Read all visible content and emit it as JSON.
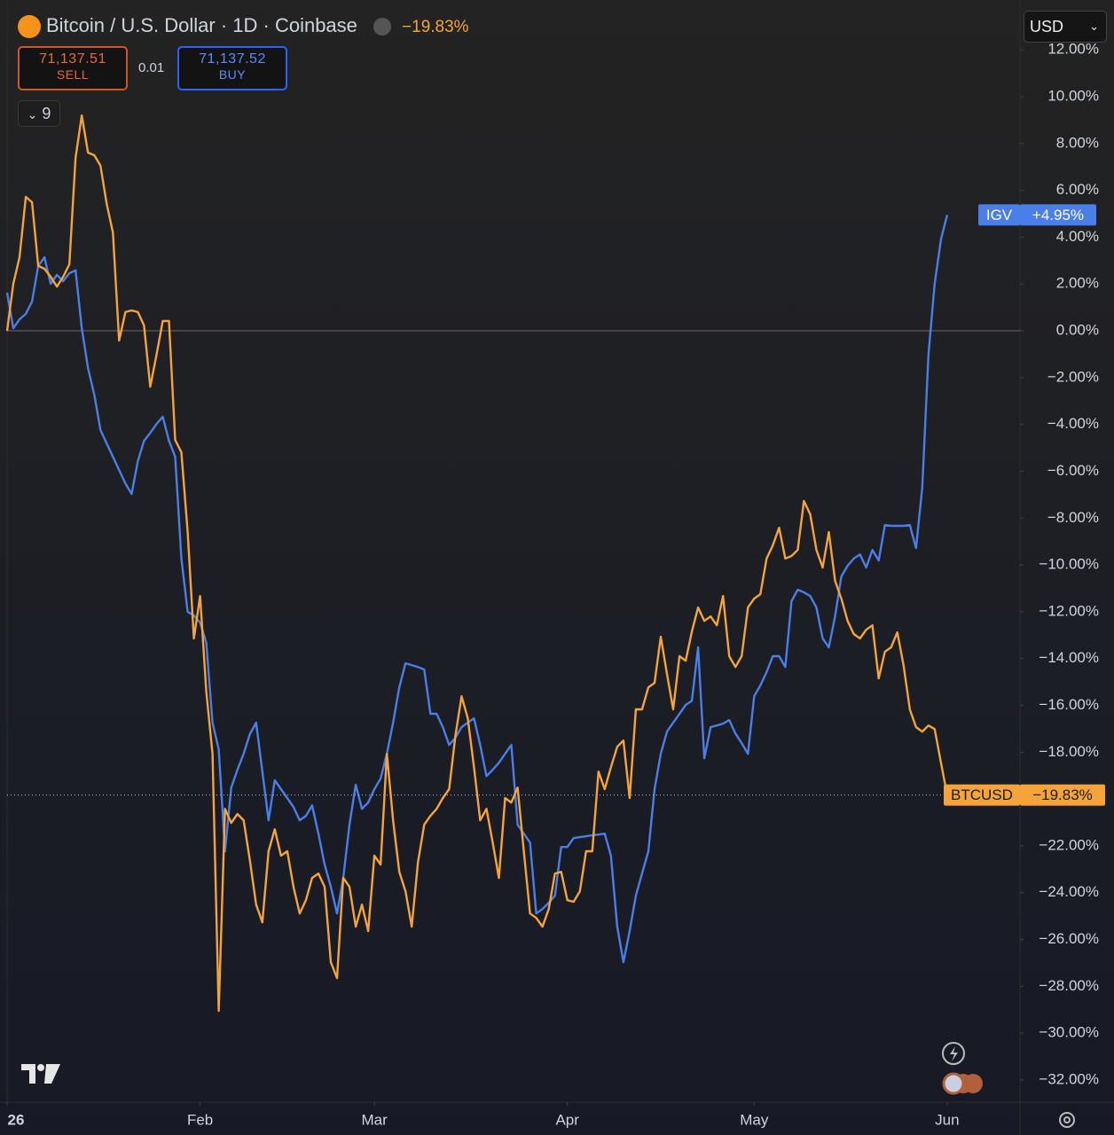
{
  "header": {
    "symbol": "Bitcoin / U.S. Dollar · 1D · Coinbase",
    "change": "−19.83%",
    "sell_price": "71,137.51",
    "sell": "SELL",
    "spread": "0.01",
    "buy_price": "71,137.52",
    "buy": "BUY",
    "indicators": "9",
    "currency": "USD"
  },
  "chart_data": {
    "type": "line",
    "x": [
      0,
      1,
      2,
      3,
      4,
      5,
      6,
      7,
      8,
      9,
      10,
      11,
      12,
      13,
      14,
      15,
      16,
      17,
      18,
      19,
      20,
      21,
      22,
      23,
      24,
      25,
      26,
      27,
      28,
      29,
      30,
      31,
      32,
      33,
      34,
      35,
      36,
      37,
      38,
      39,
      40,
      41,
      42,
      43,
      44,
      45,
      46,
      47,
      48,
      49,
      50,
      51,
      52,
      53,
      54,
      55,
      56,
      57,
      58,
      59,
      60,
      61,
      62,
      63,
      64,
      65,
      66,
      67,
      68,
      69,
      70,
      71,
      72,
      73,
      74,
      75,
      76,
      77,
      78,
      79,
      80,
      81,
      82,
      83,
      84,
      85,
      86,
      87,
      88,
      89,
      90,
      91,
      92,
      93,
      94,
      95,
      96,
      97,
      98,
      99,
      100,
      101,
      102,
      103,
      104,
      105,
      106,
      107,
      108,
      109,
      110,
      111,
      112,
      113,
      114,
      115,
      116,
      117,
      118,
      119,
      120,
      121,
      122,
      123,
      124,
      125,
      126,
      127,
      128,
      129,
      130,
      131,
      132,
      133,
      134,
      135,
      136,
      137,
      138,
      139,
      140,
      141,
      142,
      143,
      144,
      145,
      146,
      147,
      148,
      149,
      150,
      151
    ],
    "xlim": [
      0,
      162.7
    ],
    "xticks": [
      {
        "value": 0,
        "label": "26"
      },
      {
        "value": 31,
        "label": "Feb"
      },
      {
        "value": 59,
        "label": "Mar"
      },
      {
        "value": 90,
        "label": "Apr"
      },
      {
        "value": 120,
        "label": "May"
      },
      {
        "value": 151,
        "label": "Jun"
      }
    ],
    "ylim": [
      -32.95,
      14.13
    ],
    "yticks": [
      {
        "value": 12,
        "label": "12.00%"
      },
      {
        "value": 10,
        "label": "10.00%"
      },
      {
        "value": 8,
        "label": "8.00%"
      },
      {
        "value": 6,
        "label": "6.00%"
      },
      {
        "value": 4,
        "label": "4.00%"
      },
      {
        "value": 2,
        "label": "2.00%"
      },
      {
        "value": 0,
        "label": "0.00%"
      },
      {
        "value": -2,
        "label": "−2.00%"
      },
      {
        "value": -4,
        "label": "−4.00%"
      },
      {
        "value": -6,
        "label": "−6.00%"
      },
      {
        "value": -8,
        "label": "−8.00%"
      },
      {
        "value": -10,
        "label": "−10.00%"
      },
      {
        "value": -12,
        "label": "−12.00%"
      },
      {
        "value": -14,
        "label": "−14.00%"
      },
      {
        "value": -16,
        "label": "−16.00%"
      },
      {
        "value": -18,
        "label": "−18.00%"
      },
      {
        "value": -20,
        "label": "−20.00%"
      },
      {
        "value": -22,
        "label": "−22.00%"
      },
      {
        "value": -24,
        "label": "−24.00%"
      },
      {
        "value": -26,
        "label": "−26.00%"
      },
      {
        "value": -28,
        "label": "−28.00%"
      },
      {
        "value": -30,
        "label": "−30.00%"
      },
      {
        "value": -32,
        "label": "−32.00%"
      }
    ],
    "grid": false,
    "zero_line": true,
    "series": [
      {
        "name": "IGV",
        "color": "#4a7ee8",
        "last_label": "+4.95%",
        "values": [
          1.63,
          0.11,
          0.49,
          0.72,
          1.25,
          2.77,
          3.14,
          2.01,
          2.39,
          2.12,
          2.46,
          2.58,
          0.11,
          -1.59,
          -2.73,
          -4.24,
          -4.81,
          -5.38,
          -5.95,
          -6.52,
          -6.97,
          -5.57,
          -4.7,
          -4.36,
          -3.98,
          -3.67,
          -4.7,
          -5.38,
          -9.73,
          -12.01,
          -12.16,
          -12.46,
          -13.33,
          -16.74,
          -17.88,
          -22.23,
          -19.51,
          -18.75,
          -18.07,
          -17.23,
          -16.74,
          -18.83,
          -20.91,
          -19.2,
          -19.58,
          -19.96,
          -20.34,
          -20.91,
          -20.72,
          -20.27,
          -21.48,
          -22.8,
          -23.75,
          -24.89,
          -23.37,
          -21.1,
          -19.39,
          -20.42,
          -20.15,
          -19.58,
          -19.13,
          -18.07,
          -16.74,
          -15.23,
          -14.2,
          -14.28,
          -14.36,
          -14.47,
          -16.36,
          -16.36,
          -16.93,
          -17.69,
          -17.39,
          -16.93,
          -16.74,
          -16.55,
          -17.69,
          -19.02,
          -18.75,
          -18.45,
          -18.07,
          -17.69,
          -21.1,
          -21.48,
          -21.86,
          -24.89,
          -24.7,
          -24.43,
          -24.13,
          -22.05,
          -22.05,
          -21.67,
          -21.63,
          -21.59,
          -21.55,
          -21.52,
          -21.48,
          -22.42,
          -25.45,
          -26.97,
          -25.64,
          -24.13,
          -23.18,
          -22.23,
          -19.58,
          -18.07,
          -17.12,
          -16.74,
          -16.36,
          -15.98,
          -15.8,
          -13.52,
          -18.26,
          -16.93,
          -16.86,
          -16.78,
          -16.63,
          -17.2,
          -17.61,
          -18.07,
          -15.61,
          -15.15,
          -14.58,
          -13.9,
          -13.9,
          -14.36,
          -11.55,
          -11.06,
          -11.17,
          -11.33,
          -11.82,
          -13.14,
          -13.52,
          -12.2,
          -10.49,
          -10.04,
          -9.73,
          -9.55,
          -10.11,
          -9.36,
          -9.81,
          -8.3,
          -8.33,
          -8.33,
          -8.33,
          -8.3,
          -9.28,
          -6.7,
          -1.02,
          2.01,
          3.9,
          4.95
        ]
      },
      {
        "name": "BTCUSD",
        "color": "#f5a43a",
        "last_label": "−19.83%",
        "values": [
          0,
          2.01,
          3.14,
          5.72,
          5.49,
          2.77,
          2.65,
          2.31,
          1.89,
          2.31,
          2.84,
          7.39,
          9.2,
          7.61,
          7.5,
          7.05,
          5.42,
          4.2,
          -0.42,
          0.8,
          0.87,
          0.8,
          0.23,
          -2.39,
          -1.02,
          0.42,
          0.42,
          -4.66,
          -5.19,
          -8.6,
          -13.14,
          -11.33,
          -15.42,
          -18.07,
          -29.05,
          -20.42,
          -21.02,
          -20.64,
          -20.91,
          -22.61,
          -24.51,
          -25.27,
          -22.23,
          -21.29,
          -22.42,
          -22.23,
          -23.75,
          -24.89,
          -24.32,
          -23.37,
          -23.18,
          -23.75,
          -26.97,
          -27.65,
          -23.37,
          -23.75,
          -25.45,
          -24.51,
          -25.64,
          -22.42,
          -22.8,
          -18.07,
          -20.91,
          -23.11,
          -23.94,
          -25.45,
          -22.69,
          -21.1,
          -20.72,
          -20.42,
          -19.96,
          -19.58,
          -17.31,
          -15.61,
          -16.55,
          -18.64,
          -20.91,
          -20.42,
          -21.86,
          -23.37,
          -19.96,
          -20.15,
          -19.51,
          -22.23,
          -24.89,
          -25.08,
          -25.45,
          -24.7,
          -23.18,
          -23.11,
          -24.32,
          -24.39,
          -23.94,
          -22.23,
          -22.23,
          -18.83,
          -19.58,
          -18.64,
          -17.77,
          -17.5,
          -19.96,
          -16.17,
          -16.17,
          -15.23,
          -15.04,
          -13.07,
          -14.66,
          -16.17,
          -13.9,
          -14.09,
          -12.84,
          -11.82,
          -12.39,
          -12.2,
          -12.58,
          -11.33,
          -13.9,
          -14.36,
          -13.9,
          -11.82,
          -11.44,
          -11.25,
          -9.73,
          -9.17,
          -8.41,
          -9.73,
          -9.62,
          -9.36,
          -7.27,
          -7.84,
          -9.36,
          -10.11,
          -8.6,
          -10.68,
          -11.44,
          -12.39,
          -12.95,
          -13.14,
          -12.77,
          -12.58,
          -14.85,
          -13.71,
          -13.52,
          -12.88,
          -14.28,
          -16.17,
          -16.93,
          -17.12,
          -16.86,
          -17.01,
          -18.45,
          -19.83
        ]
      }
    ]
  }
}
